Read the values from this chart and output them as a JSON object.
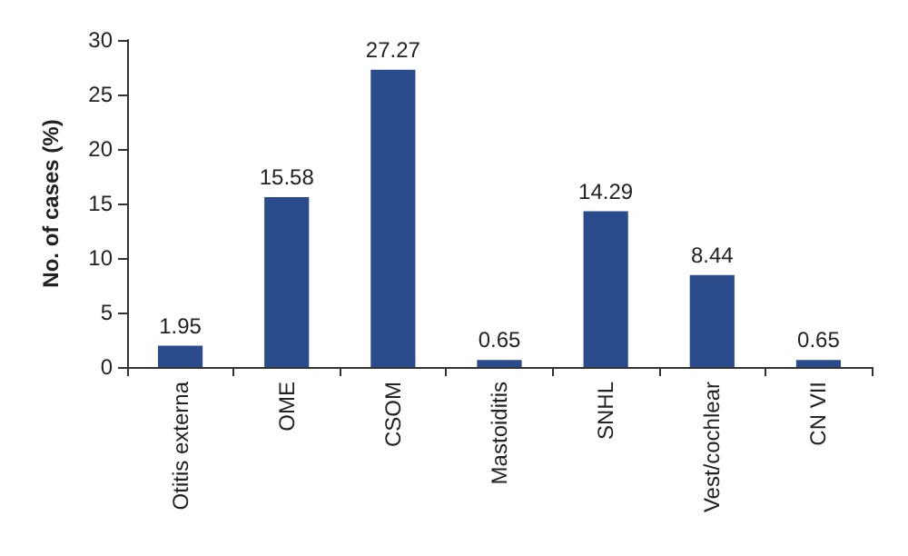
{
  "chart_data": {
    "type": "bar",
    "ylabel": "No. of cases (%)",
    "categories": [
      "Otitis externa",
      "OME",
      "CSOM",
      "Mastoiditis",
      "SNHL",
      "Vest/cochlear",
      "CN VII"
    ],
    "values": [
      1.95,
      15.58,
      27.27,
      0.65,
      14.29,
      8.44,
      0.65
    ],
    "color": "#2b4c8c",
    "ylim": [
      0,
      30
    ],
    "yticks": [
      0,
      5,
      10,
      15,
      20,
      25,
      30
    ],
    "data_labels": true,
    "grid": false
  }
}
